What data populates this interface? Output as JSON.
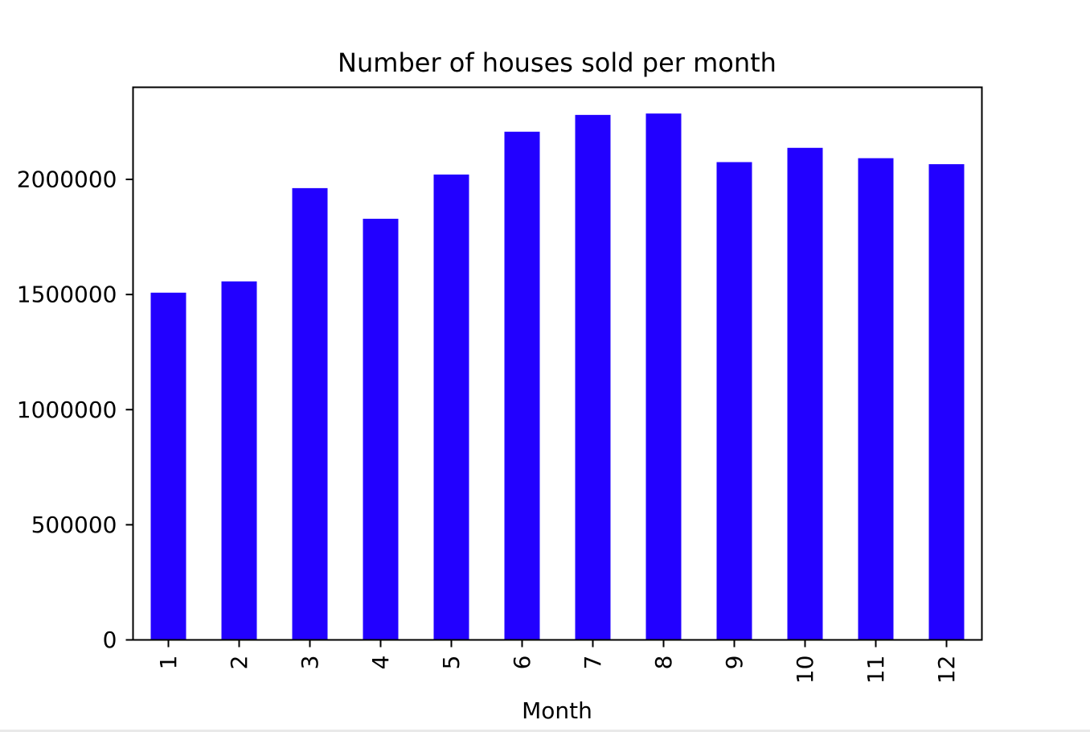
{
  "chart_data": {
    "type": "bar",
    "title": "Number of houses sold per month",
    "xlabel": "Month",
    "ylabel": "",
    "categories": [
      "1",
      "2",
      "3",
      "4",
      "5",
      "6",
      "7",
      "8",
      "9",
      "10",
      "11",
      "12"
    ],
    "values": [
      1508000,
      1557000,
      1962000,
      1829000,
      2021000,
      2207000,
      2280000,
      2286000,
      2075000,
      2137000,
      2092000,
      2066000
    ],
    "ylim": [
      0,
      2400000
    ],
    "yticks": [
      0,
      500000,
      1000000,
      1500000,
      2000000
    ],
    "ytick_labels": [
      "0",
      "500000",
      "1000000",
      "1500000",
      "2000000"
    ],
    "bar_color": "#2200ff",
    "grid": false,
    "legend": "none",
    "x_tick_rotation": "vertical"
  }
}
